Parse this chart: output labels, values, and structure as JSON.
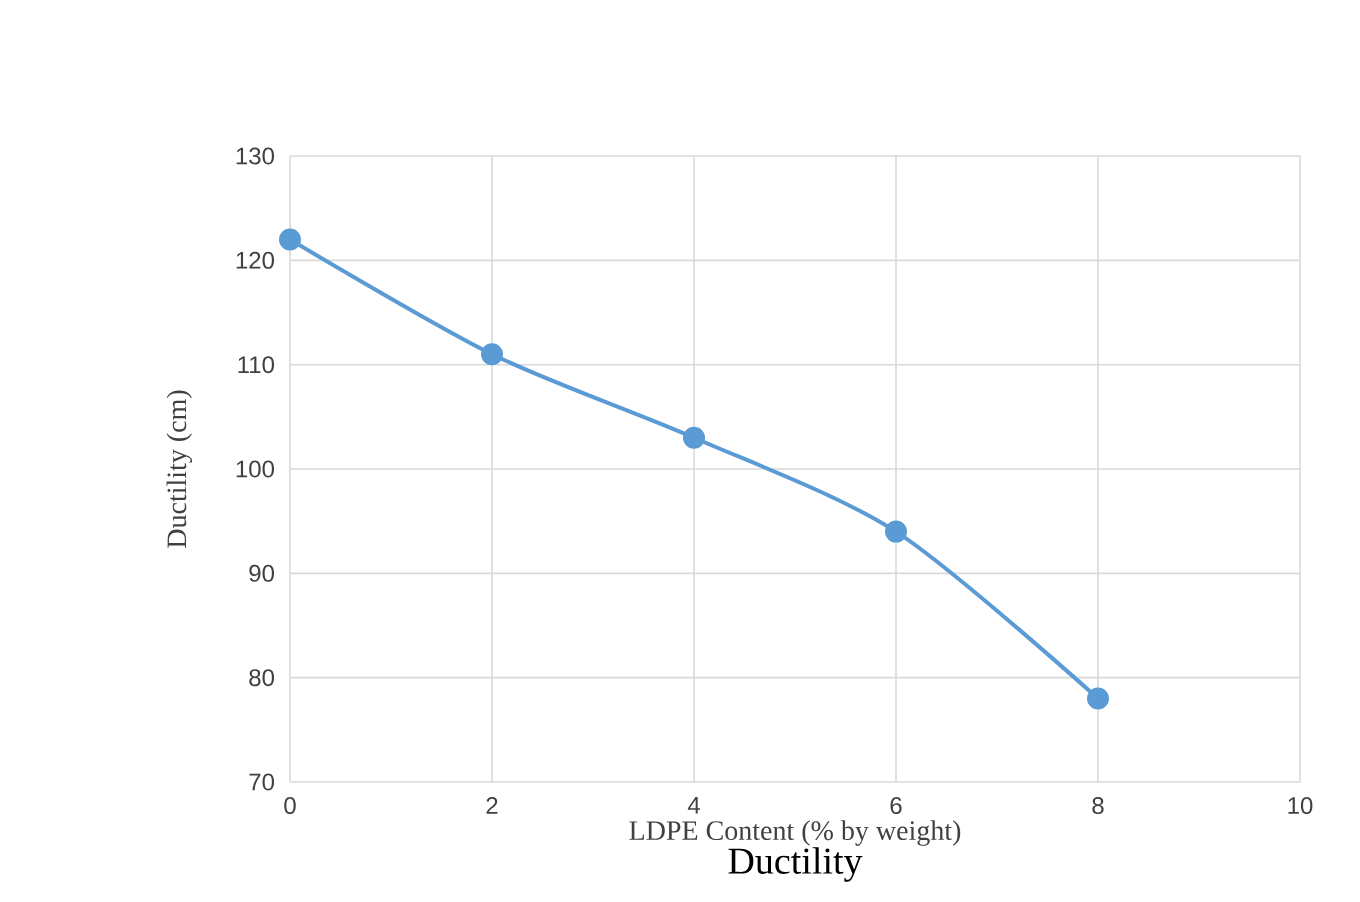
{
  "chart_data": {
    "type": "line",
    "title": "Ductility",
    "xlabel": "LDPE Content (% by weight)",
    "ylabel": "Ductility (cm)",
    "x": [
      0,
      2,
      4,
      6,
      8
    ],
    "series": [
      {
        "color": "#5b9bd5",
        "values": [
          122,
          111,
          103,
          94,
          78
        ]
      }
    ],
    "xlim": [
      0,
      10
    ],
    "xticks": [
      0,
      2,
      4,
      6,
      8,
      10
    ],
    "ylim": [
      70,
      130
    ],
    "yticks": [
      70,
      80,
      90,
      100,
      110,
      120,
      130
    ],
    "grid": true,
    "marker": "circle",
    "line_style": "solid"
  }
}
